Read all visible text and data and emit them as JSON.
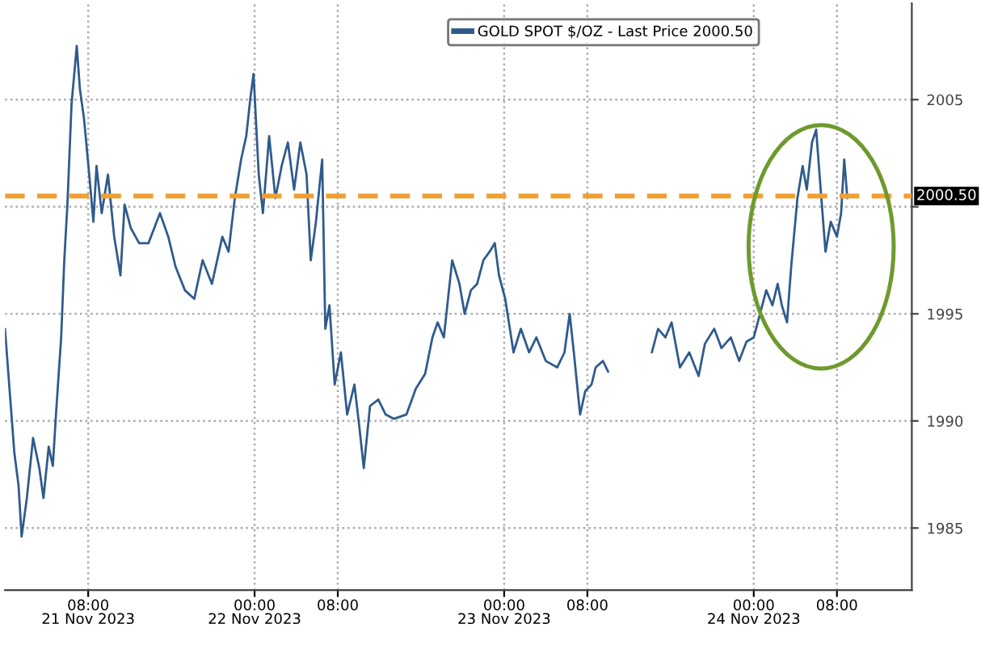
{
  "chart_data": {
    "type": "line",
    "xlim": [
      "2023-11-21T00:00",
      "2023-11-24T15:12"
    ],
    "ylim": [
      1982.1,
      2009.5
    ],
    "xticks": [
      {
        "value": "2023-11-21T08:00",
        "label": "08:00\n21 Nov 2023"
      },
      {
        "value": "2023-11-22T00:00",
        "label": "00:00\n22 Nov 2023"
      },
      {
        "value": "2023-11-22T08:00",
        "label": "08:00"
      },
      {
        "value": "2023-11-23T00:00",
        "label": "00:00\n23 Nov 2023"
      },
      {
        "value": "2023-11-23T08:00",
        "label": "08:00"
      },
      {
        "value": "2023-11-24T00:00",
        "label": "00:00\n24 Nov 2023"
      },
      {
        "value": "2023-11-24T08:00",
        "label": "08:00"
      }
    ],
    "yticks": [
      1985,
      1990,
      1995,
      {
        "value": 2000,
        "label": null
      },
      2005
    ],
    "grid": true,
    "legend": "top",
    "line_style": "solid",
    "ref_lines": [
      {
        "axis": "y",
        "value": 2000.5,
        "label": "2000.50",
        "color": "#f0a030",
        "line_style": "dashed"
      }
    ],
    "series": [
      {
        "name": "GOLD SPOT $/OZ - Last Price 2000.50",
        "color": "#2f5b8c",
        "x": [
          "2023-11-21T00:00",
          "2023-11-21T00:24",
          "2023-11-21T00:54",
          "2023-11-21T01:18",
          "2023-11-21T01:36",
          "2023-11-21T02:06",
          "2023-11-21T02:42",
          "2023-11-21T03:18",
          "2023-11-21T03:42",
          "2023-11-21T04:12",
          "2023-11-21T04:36",
          "2023-11-21T04:54",
          "2023-11-21T05:24",
          "2023-11-21T05:42",
          "2023-11-21T06:00",
          "2023-11-21T06:24",
          "2023-11-21T06:54",
          "2023-11-21T07:12",
          "2023-11-21T07:36",
          "2023-11-21T08:06",
          "2023-11-21T08:30",
          "2023-11-21T08:48",
          "2023-11-21T09:18",
          "2023-11-21T09:54",
          "2023-11-21T10:30",
          "2023-11-21T11:06",
          "2023-11-21T11:30",
          "2023-11-21T12:06",
          "2023-11-21T12:54",
          "2023-11-21T13:48",
          "2023-11-21T14:54",
          "2023-11-21T15:42",
          "2023-11-21T16:24",
          "2023-11-21T17:18",
          "2023-11-21T18:12",
          "2023-11-21T19:00",
          "2023-11-21T19:54",
          "2023-11-21T20:54",
          "2023-11-21T21:30",
          "2023-11-21T22:06",
          "2023-11-21T22:42",
          "2023-11-21T23:12",
          "2023-11-21T23:36",
          "2023-11-21T23:54",
          "2023-11-22T00:24",
          "2023-11-22T00:48",
          "2023-11-22T01:24",
          "2023-11-22T02:00",
          "2023-11-22T02:36",
          "2023-11-22T03:12",
          "2023-11-22T03:48",
          "2023-11-22T04:24",
          "2023-11-22T05:00",
          "2023-11-22T05:24",
          "2023-11-22T05:54",
          "2023-11-22T06:30",
          "2023-11-22T06:48",
          "2023-11-22T07:12",
          "2023-11-22T07:42",
          "2023-11-22T08:18",
          "2023-11-22T08:54",
          "2023-11-22T09:36",
          "2023-11-22T10:06",
          "2023-11-22T10:30",
          "2023-11-22T11:06",
          "2023-11-22T11:54",
          "2023-11-22T12:36",
          "2023-11-22T13:24",
          "2023-11-22T14:36",
          "2023-11-22T15:30",
          "2023-11-22T16:24",
          "2023-11-22T17:06",
          "2023-11-22T17:36",
          "2023-11-22T18:12",
          "2023-11-22T19:00",
          "2023-11-22T19:42",
          "2023-11-22T20:12",
          "2023-11-22T20:48",
          "2023-11-22T21:24",
          "2023-11-22T22:00",
          "2023-11-22T22:36",
          "2023-11-22T23:06",
          "2023-11-22T23:30",
          "2023-11-23T00:06",
          "2023-11-23T00:54",
          "2023-11-23T01:36",
          "2023-11-23T02:24",
          "2023-11-23T03:06",
          "2023-11-23T04:00",
          "2023-11-23T05:06",
          "2023-11-23T05:48",
          "2023-11-23T06:18",
          "2023-11-23T06:42",
          "2023-11-23T07:18",
          "2023-11-23T07:48",
          "2023-11-23T08:24",
          "2023-11-23T08:48",
          "2023-11-23T09:30",
          "2023-11-23T10:00",
          "2023-11-23T12:00",
          "2023-11-23T14:12",
          "2023-11-23T14:48",
          "2023-11-23T15:30",
          "2023-11-23T16:06",
          "2023-11-23T16:54",
          "2023-11-23T17:48",
          "2023-11-23T18:42",
          "2023-11-23T19:18",
          "2023-11-23T20:12",
          "2023-11-23T20:54",
          "2023-11-23T21:48",
          "2023-11-23T22:36",
          "2023-11-23T23:18",
          "2023-11-24T00:00",
          "2023-11-24T00:36",
          "2023-11-24T01:12",
          "2023-11-24T01:48",
          "2023-11-24T02:18",
          "2023-11-24T02:42",
          "2023-11-24T03:12",
          "2023-11-24T03:36",
          "2023-11-24T04:12",
          "2023-11-24T04:42",
          "2023-11-24T05:06",
          "2023-11-24T05:36",
          "2023-11-24T06:00",
          "2023-11-24T06:30",
          "2023-11-24T06:54",
          "2023-11-24T07:24",
          "2023-11-24T08:00",
          "2023-11-24T08:24",
          "2023-11-24T08:42",
          "2023-11-24T09:00"
        ],
        "values": [
          1994.3,
          1991.7,
          1988.5,
          1987.0,
          1984.6,
          1986.4,
          1989.2,
          1987.8,
          1986.4,
          1988.8,
          1987.9,
          1990.3,
          1993.9,
          1997.5,
          2000.1,
          2004.8,
          2007.5,
          2005.5,
          2004.1,
          2001.5,
          1999.3,
          2001.9,
          1999.7,
          2001.5,
          1998.6,
          1996.8,
          2000.1,
          1999.0,
          1998.3,
          1998.3,
          1999.7,
          1998.6,
          1997.2,
          1996.1,
          1995.7,
          1997.5,
          1996.4,
          1998.6,
          1997.9,
          2000.4,
          2002.2,
          2003.3,
          2005.1,
          2006.2,
          2001.5,
          1999.7,
          2003.3,
          2000.4,
          2001.9,
          2003.0,
          2000.8,
          2003.0,
          2001.5,
          1997.5,
          1999.3,
          2002.2,
          1994.3,
          1995.4,
          1991.7,
          1993.2,
          1990.3,
          1991.7,
          1989.6,
          1987.8,
          1990.7,
          1991.0,
          1990.3,
          1990.1,
          1990.3,
          1991.5,
          1992.2,
          1993.9,
          1994.6,
          1993.9,
          1997.5,
          1996.4,
          1995.0,
          1996.1,
          1996.4,
          1997.5,
          1997.9,
          1998.3,
          1996.8,
          1995.7,
          1993.2,
          1994.3,
          1993.2,
          1993.9,
          1992.8,
          1992.5,
          1993.2,
          1995.0,
          1993.2,
          1990.3,
          1991.4,
          1991.7,
          1992.5,
          1992.8,
          1992.3,
          null,
          1993.2,
          1994.3,
          1993.9,
          1994.6,
          1992.5,
          1993.2,
          1992.1,
          1993.6,
          1994.3,
          1993.4,
          1993.9,
          1992.8,
          1993.7,
          1993.9,
          1995.0,
          1996.1,
          1995.4,
          1996.4,
          1995.4,
          1994.6,
          1997.2,
          2000.4,
          2001.9,
          2000.8,
          2003.0,
          2003.6,
          2000.4,
          1997.9,
          1999.3,
          1998.6,
          1999.7,
          2002.2,
          2000.4
        ]
      }
    ]
  }
}
